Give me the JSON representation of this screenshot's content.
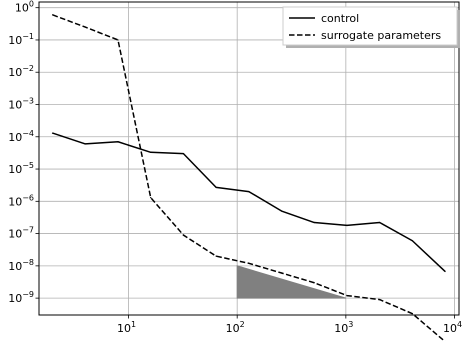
{
  "chart_data": {
    "type": "line",
    "title": "",
    "xlabel": "",
    "ylabel": "",
    "xscale": "log",
    "yscale": "log",
    "xlim": [
      1.5,
      11000
    ],
    "ylim": [
      3e-10,
      1.5
    ],
    "grid": true,
    "legend": {
      "placement": "top-right"
    },
    "x_ticks": [
      {
        "base": "10",
        "exp": "1",
        "value": 10
      },
      {
        "base": "10",
        "exp": "2",
        "value": 100
      },
      {
        "base": "10",
        "exp": "3",
        "value": 1000
      },
      {
        "base": "10",
        "exp": "4",
        "value": 10000
      }
    ],
    "y_ticks": [
      {
        "base": "10",
        "exp": "0",
        "value": 1
      },
      {
        "base": "10",
        "exp": "−1",
        "value": 0.1
      },
      {
        "base": "10",
        "exp": "−2",
        "value": 0.01
      },
      {
        "base": "10",
        "exp": "−3",
        "value": 0.001
      },
      {
        "base": "10",
        "exp": "−4",
        "value": 0.0001
      },
      {
        "base": "10",
        "exp": "−5",
        "value": 1e-05
      },
      {
        "base": "10",
        "exp": "−6",
        "value": 1e-06
      },
      {
        "base": "10",
        "exp": "−7",
        "value": 1e-07
      },
      {
        "base": "10",
        "exp": "−8",
        "value": 1e-08
      },
      {
        "base": "10",
        "exp": "−9",
        "value": 1e-09
      }
    ],
    "series": [
      {
        "name": "control",
        "style": "solid",
        "color": "#000000",
        "x": [
          2,
          4,
          8,
          16,
          32,
          64,
          128,
          256,
          512,
          1024,
          2048,
          4096,
          8192
        ],
        "y": [
          0.00013,
          6e-05,
          7e-05,
          3.3e-05,
          3e-05,
          2.7e-06,
          2e-06,
          5e-07,
          2.2e-07,
          1.8e-07,
          2.2e-07,
          6e-08,
          6.7e-09
        ]
      },
      {
        "name": "surrogate parameters",
        "style": "dashed",
        "color": "#000000",
        "x": [
          2,
          4,
          8,
          16,
          32,
          64,
          128,
          256,
          512,
          1024,
          2048,
          4096,
          8192
        ],
        "y": [
          0.6,
          0.25,
          0.1,
          1.3e-06,
          9e-08,
          2e-08,
          1.2e-08,
          6e-09,
          3e-09,
          1.2e-09,
          9e-10,
          3.3e-10,
          4.5e-11
        ]
      }
    ],
    "annotations": [
      {
        "type": "slope-triangle",
        "color": "#808080",
        "points": [
          [
            100,
            1e-08
          ],
          [
            100,
            1e-09
          ],
          [
            1000,
            1e-09
          ]
        ]
      }
    ]
  }
}
